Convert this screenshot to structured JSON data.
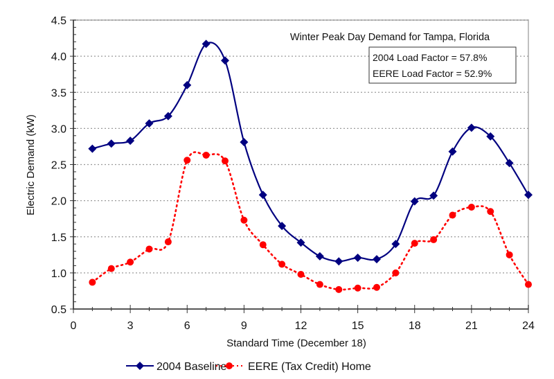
{
  "chart_data": {
    "type": "line",
    "title": "Winter Peak Day Demand for Tampa, Florida",
    "xlabel": "Standard Time (December 18)",
    "ylabel": "Electric Demand (kW)",
    "xlim": [
      0,
      24
    ],
    "ylim": [
      0.5,
      4.5
    ],
    "xticks": [
      0,
      3,
      6,
      9,
      12,
      15,
      18,
      21,
      24
    ],
    "xtick_labels": [
      "0",
      "3",
      "6",
      "9",
      "12",
      "15",
      "18",
      "21",
      "24"
    ],
    "yticks": [
      0.5,
      1.0,
      1.5,
      2.0,
      2.5,
      3.0,
      3.5,
      4.0,
      4.5
    ],
    "ytick_labels": [
      "0.5",
      "1.0",
      "1.5",
      "2.0",
      "2.5",
      "3.0",
      "3.5",
      "4.0",
      "4.5"
    ],
    "grid": "horizontal dotted",
    "legend_position": "bottom",
    "annotations": [
      "2004 Load Factor  = 57.8%",
      "EERE Load Factor = 52.9%"
    ],
    "x": [
      1,
      2,
      3,
      4,
      5,
      6,
      7,
      8,
      9,
      10,
      11,
      12,
      13,
      14,
      15,
      16,
      17,
      18,
      19,
      20,
      21,
      22,
      23,
      24
    ],
    "series": [
      {
        "name": "2004 Baseline",
        "color": "#000080",
        "marker": "diamond",
        "line": "solid",
        "values": [
          2.72,
          2.79,
          2.83,
          3.07,
          3.17,
          3.6,
          4.17,
          3.94,
          2.81,
          2.08,
          1.65,
          1.42,
          1.23,
          1.16,
          1.21,
          1.19,
          1.4,
          1.99,
          2.07,
          2.68,
          3.01,
          2.89,
          2.52,
          2.08
        ]
      },
      {
        "name": "EERE (Tax Credit) Home",
        "color": "#ff0000",
        "marker": "circle",
        "line": "dotted",
        "values": [
          0.87,
          1.06,
          1.15,
          1.33,
          1.43,
          2.56,
          2.63,
          2.55,
          1.73,
          1.39,
          1.12,
          0.98,
          0.84,
          0.77,
          0.79,
          0.8,
          1.0,
          1.41,
          1.46,
          1.8,
          1.91,
          1.85,
          1.25,
          0.84
        ]
      }
    ]
  }
}
